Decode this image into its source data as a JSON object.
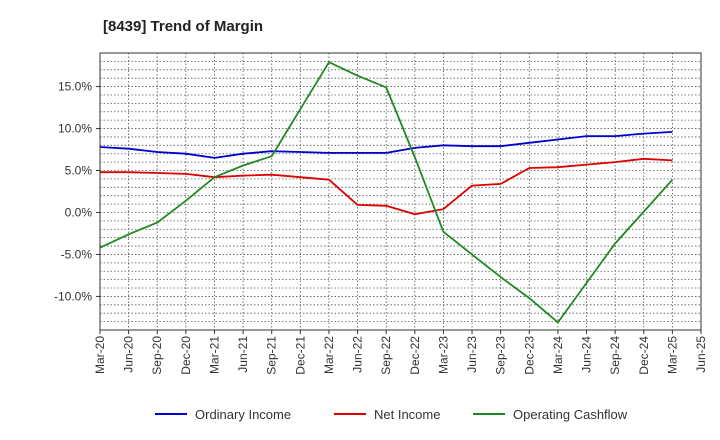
{
  "chart_data": {
    "type": "line",
    "title": "[8439]  Trend of Margin",
    "xlabel": "",
    "ylabel": "",
    "ylim": [
      -14.0,
      19.0
    ],
    "y_ticks": [
      -10,
      -5,
      0,
      5,
      10,
      15
    ],
    "y_tick_labels": [
      "-10.0%",
      "-5.0%",
      "0.0%",
      "5.0%",
      "10.0%",
      "15.0%"
    ],
    "categories": [
      "Mar-20",
      "Jun-20",
      "Sep-20",
      "Dec-20",
      "Mar-21",
      "Jun-21",
      "Sep-21",
      "Dec-21",
      "Mar-22",
      "Jun-22",
      "Sep-22",
      "Dec-22",
      "Mar-23",
      "Jun-23",
      "Sep-23",
      "Dec-23",
      "Mar-24",
      "Jun-24",
      "Sep-24",
      "Dec-24",
      "Mar-25",
      "Jun-25"
    ],
    "grid": true,
    "legend_position": "bottom",
    "series": [
      {
        "name": "Ordinary Income",
        "color": "#0000cc",
        "values": [
          7.8,
          7.6,
          7.2,
          7.0,
          6.5,
          7.0,
          7.3,
          7.2,
          7.1,
          7.1,
          7.1,
          7.7,
          8.0,
          7.9,
          7.9,
          8.3,
          8.7,
          9.1,
          9.1,
          9.4,
          9.6,
          null
        ]
      },
      {
        "name": "Net Income",
        "color": "#dd0000",
        "values": [
          4.8,
          4.8,
          4.7,
          4.6,
          4.2,
          4.4,
          4.5,
          4.2,
          3.9,
          0.9,
          0.8,
          -0.2,
          0.4,
          3.2,
          3.4,
          5.3,
          5.4,
          5.7,
          6.0,
          6.4,
          6.2,
          null
        ]
      },
      {
        "name": "Operating Cashflow",
        "color": "#228822",
        "values": [
          -4.2,
          -2.6,
          -1.2,
          1.4,
          4.2,
          5.6,
          6.7,
          12.3,
          17.9,
          16.3,
          14.9,
          6.6,
          -2.3,
          -5.0,
          -7.7,
          -10.2,
          -13.1,
          -8.4,
          -3.7,
          0.1,
          3.9,
          null
        ]
      }
    ]
  }
}
